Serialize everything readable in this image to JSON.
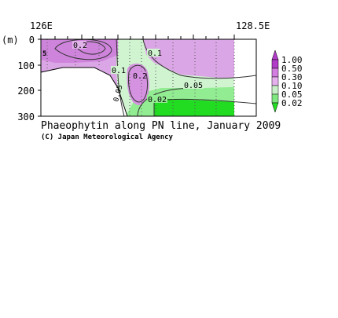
{
  "chart_data": {
    "type": "heatmap",
    "title": "Phaeophytin along PN line, January 2009",
    "credit": "(C) Japan Meteorological Agency",
    "xlabel": "",
    "ylabel": "(m)",
    "x_ticks": [
      "126E",
      "128.5E"
    ],
    "y_ticks": [
      "0",
      "100",
      "200",
      "300"
    ],
    "ylim": [
      0,
      300
    ],
    "y_inverted": true,
    "legend": {
      "placement": "right",
      "levels": [
        "1.00",
        "0.50",
        "0.30",
        "0.10",
        "0.05",
        "0.02"
      ],
      "colors": [
        "#b03cc8",
        "#d27ee0",
        "#e6b0ee",
        "#c8f0c8",
        "#80e880",
        "#22dd22"
      ]
    },
    "contour_labels": [
      "0.2",
      "0.1",
      "0.2",
      "0.1",
      "0.05",
      "0.05",
      "0.02",
      "0.5"
    ],
    "colors": {
      "high": "#c86ad8",
      "mid": "#dda0e6",
      "low": "#f0d6f4",
      "green_light": "#ccf4cc",
      "green_mid": "#88ea88",
      "green_strong": "#1fdc1f",
      "land": "#ffffff"
    }
  }
}
